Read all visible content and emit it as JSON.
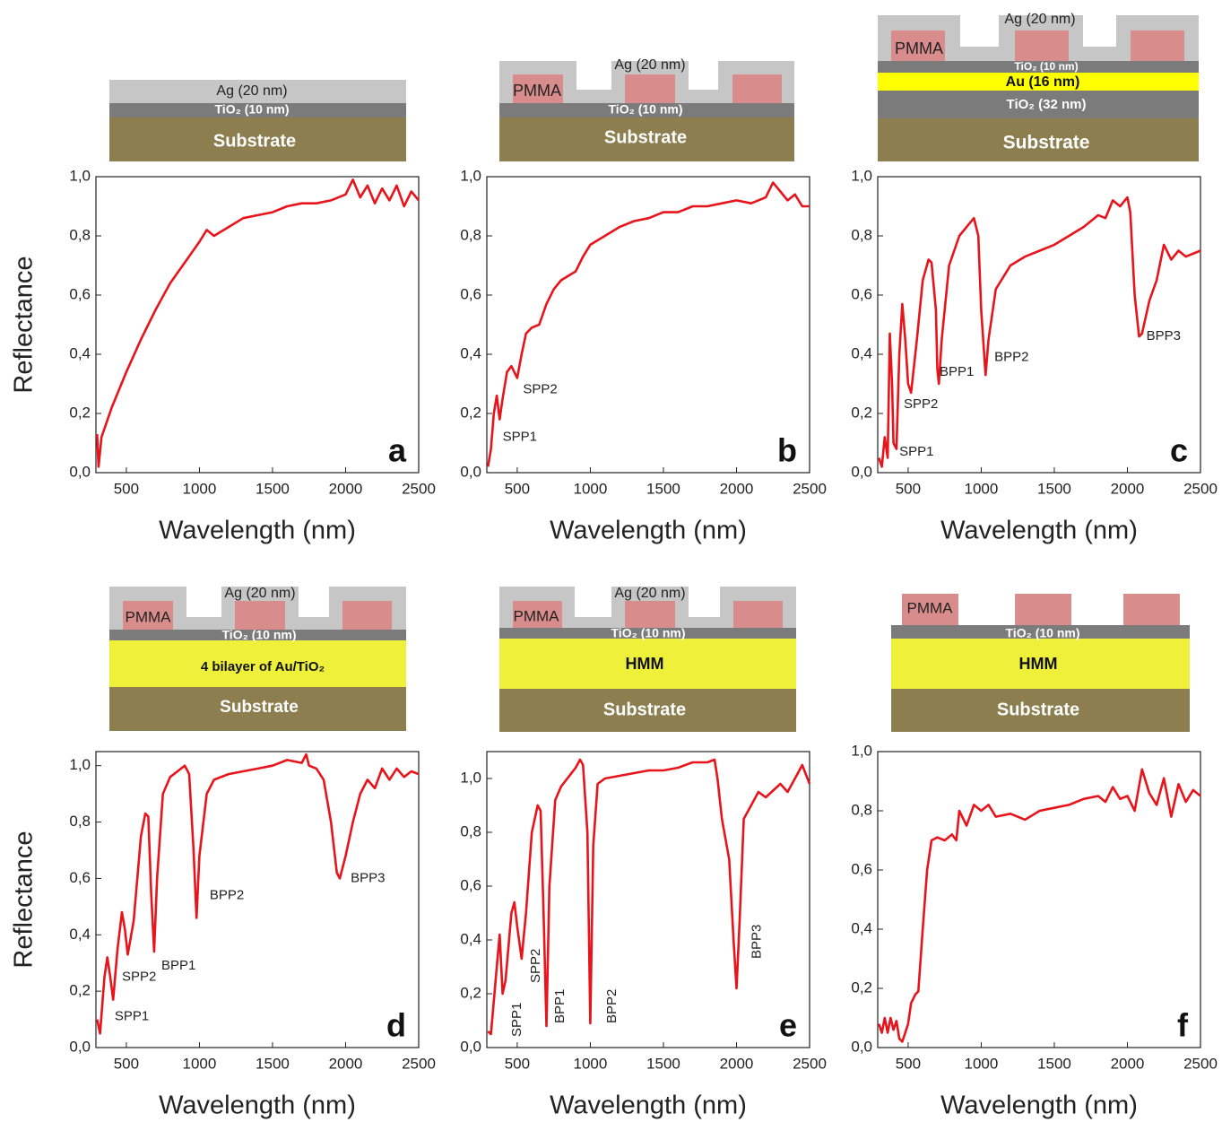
{
  "chart_data": [
    {
      "type": "line",
      "panel_label": "a",
      "xlabel": "Wavelength (nm)",
      "ylabel": "Reflectance",
      "color": "#e8141b",
      "schematic": [
        "Ag (20 nm)",
        "TiO₂ (10 nm)",
        "Substrate"
      ],
      "xlim": [
        292,
        2500
      ],
      "xticks": [
        500,
        1000,
        1500,
        2000,
        2500
      ],
      "ylim": [
        0,
        1
      ],
      "yticks": [
        {
          "value": 0,
          "label": "0,0"
        },
        {
          "value": 0.2,
          "label": "0,2"
        },
        {
          "value": 0.4,
          "label": "0,4"
        },
        {
          "value": 0.6,
          "label": "0,6"
        },
        {
          "value": 0.8,
          "label": "0,8"
        },
        {
          "value": 1,
          "label": "1,0"
        }
      ],
      "x": [
        300,
        310,
        330,
        400,
        500,
        600,
        700,
        800,
        900,
        1000,
        1050,
        1100,
        1200,
        1300,
        1400,
        1500,
        1600,
        1700,
        1800,
        1900,
        2000,
        2050,
        2100,
        2150,
        2200,
        2250,
        2300,
        2350,
        2400,
        2450,
        2500
      ],
      "values": [
        0.13,
        0.02,
        0.12,
        0.22,
        0.34,
        0.45,
        0.55,
        0.64,
        0.71,
        0.78,
        0.82,
        0.8,
        0.83,
        0.86,
        0.87,
        0.88,
        0.9,
        0.91,
        0.91,
        0.92,
        0.94,
        0.99,
        0.93,
        0.97,
        0.91,
        0.96,
        0.92,
        0.97,
        0.9,
        0.95,
        0.92
      ],
      "annotations": []
    },
    {
      "type": "line",
      "panel_label": "b",
      "xlabel": "Wavelength (nm)",
      "color": "#e8141b",
      "schematic": [
        "Ag (20 nm)",
        "PMMA",
        "TiO₂ (10 nm)",
        "Substrate"
      ],
      "xlim": [
        292,
        2500
      ],
      "xticks": [
        500,
        1000,
        1500,
        2000,
        2500
      ],
      "ylim": [
        0,
        1
      ],
      "yticks": [
        {
          "value": 0,
          "label": "0,0"
        },
        {
          "value": 0.2,
          "label": "0,2"
        },
        {
          "value": 0.4,
          "label": "0,4"
        },
        {
          "value": 0.6,
          "label": "0,6"
        },
        {
          "value": 0.8,
          "label": "0,8"
        },
        {
          "value": 1,
          "label": "1,0"
        }
      ],
      "x": [
        300,
        320,
        340,
        360,
        380,
        400,
        430,
        460,
        500,
        530,
        560,
        600,
        650,
        700,
        750,
        800,
        900,
        950,
        1000,
        1100,
        1200,
        1300,
        1400,
        1500,
        1600,
        1700,
        1800,
        1900,
        2000,
        2100,
        2200,
        2250,
        2300,
        2350,
        2400,
        2450,
        2500
      ],
      "values": [
        0.02,
        0.08,
        0.2,
        0.26,
        0.18,
        0.25,
        0.34,
        0.36,
        0.32,
        0.4,
        0.47,
        0.49,
        0.5,
        0.57,
        0.62,
        0.65,
        0.68,
        0.73,
        0.77,
        0.8,
        0.83,
        0.85,
        0.86,
        0.88,
        0.88,
        0.9,
        0.9,
        0.91,
        0.92,
        0.91,
        0.93,
        0.98,
        0.95,
        0.92,
        0.94,
        0.9,
        0.9
      ],
      "annotations": [
        {
          "text": "SPP1",
          "x": 400,
          "y": 0.12
        },
        {
          "text": "SPP2",
          "x": 540,
          "y": 0.28
        }
      ]
    },
    {
      "type": "line",
      "panel_label": "c",
      "xlabel": "Wavelength (nm)",
      "color": "#e8141b",
      "schematic": [
        "Ag (20 nm)",
        "PMMA",
        "TiO₂ (10 nm)",
        "Au (16 nm)",
        "TiO₂ (32 nm)",
        "Substrate"
      ],
      "xlim": [
        292,
        2500
      ],
      "xticks": [
        500,
        1000,
        1500,
        2000,
        2500
      ],
      "ylim": [
        0,
        1
      ],
      "yticks": [
        {
          "value": 0,
          "label": "0,0"
        },
        {
          "value": 0.2,
          "label": "0,2"
        },
        {
          "value": 0.4,
          "label": "0,4"
        },
        {
          "value": 0.6,
          "label": "0,6"
        },
        {
          "value": 0.8,
          "label": "0,8"
        },
        {
          "value": 1,
          "label": "1,0"
        }
      ],
      "x": [
        300,
        320,
        340,
        360,
        375,
        390,
        400,
        420,
        440,
        460,
        480,
        500,
        520,
        560,
        600,
        640,
        660,
        690,
        700,
        710,
        730,
        780,
        850,
        900,
        950,
        980,
        1000,
        1030,
        1050,
        1100,
        1200,
        1300,
        1400,
        1500,
        1600,
        1700,
        1800,
        1850,
        1900,
        1950,
        2000,
        2020,
        2050,
        2080,
        2100,
        2150,
        2200,
        2250,
        2300,
        2350,
        2400,
        2500
      ],
      "values": [
        0.05,
        0.02,
        0.12,
        0.05,
        0.47,
        0.3,
        0.1,
        0.08,
        0.4,
        0.57,
        0.45,
        0.3,
        0.27,
        0.45,
        0.65,
        0.72,
        0.71,
        0.55,
        0.35,
        0.3,
        0.45,
        0.7,
        0.8,
        0.83,
        0.86,
        0.8,
        0.55,
        0.33,
        0.45,
        0.62,
        0.7,
        0.73,
        0.75,
        0.77,
        0.8,
        0.83,
        0.87,
        0.86,
        0.92,
        0.9,
        0.93,
        0.88,
        0.6,
        0.46,
        0.47,
        0.58,
        0.65,
        0.77,
        0.72,
        0.75,
        0.73,
        0.75
      ],
      "annotations": [
        {
          "text": "SPP1",
          "x": 440,
          "y": 0.07
        },
        {
          "text": "SPP2",
          "x": 470,
          "y": 0.23
        },
        {
          "text": "BPP1",
          "x": 715,
          "y": 0.34
        },
        {
          "text": "BPP2",
          "x": 1090,
          "y": 0.39
        },
        {
          "text": "BPP3",
          "x": 2130,
          "y": 0.46
        }
      ]
    },
    {
      "type": "line",
      "panel_label": "d",
      "xlabel": "Wavelength (nm)",
      "ylabel": "Reflectance",
      "color": "#e8141b",
      "schematic": [
        "Ag (20 nm)",
        "PMMA",
        "TiO₂ (10 nm)",
        "4 bilayer of Au/TiO₂",
        "Substrate"
      ],
      "xlim": [
        292,
        2500
      ],
      "xticks": [
        500,
        1000,
        1500,
        2000,
        2500
      ],
      "ylim": [
        0,
        1.05
      ],
      "yticks": [
        {
          "value": 0,
          "label": "0,0"
        },
        {
          "value": 0.2,
          "label": "0,2"
        },
        {
          "value": 0.4,
          "label": "0,4"
        },
        {
          "value": 0.6,
          "label": "0,6"
        },
        {
          "value": 0.8,
          "label": "0,8"
        },
        {
          "value": 1,
          "label": "1,0"
        }
      ],
      "x": [
        300,
        320,
        350,
        370,
        390,
        410,
        440,
        470,
        490,
        510,
        550,
        600,
        630,
        650,
        670,
        690,
        710,
        750,
        800,
        850,
        900,
        930,
        960,
        980,
        1000,
        1050,
        1100,
        1200,
        1300,
        1400,
        1500,
        1600,
        1700,
        1730,
        1750,
        1800,
        1850,
        1900,
        1940,
        1960,
        2000,
        2050,
        2100,
        2150,
        2200,
        2250,
        2300,
        2350,
        2400,
        2450,
        2500
      ],
      "values": [
        0.1,
        0.05,
        0.25,
        0.32,
        0.25,
        0.17,
        0.35,
        0.48,
        0.42,
        0.33,
        0.45,
        0.75,
        0.83,
        0.82,
        0.55,
        0.34,
        0.6,
        0.9,
        0.96,
        0.98,
        1.0,
        0.97,
        0.7,
        0.46,
        0.68,
        0.9,
        0.95,
        0.97,
        0.98,
        0.99,
        1.0,
        1.02,
        1.01,
        1.04,
        1.0,
        0.99,
        0.95,
        0.8,
        0.62,
        0.6,
        0.68,
        0.8,
        0.9,
        0.95,
        0.92,
        0.99,
        0.95,
        0.99,
        0.96,
        0.98,
        0.97
      ],
      "annotations": [
        {
          "text": "SPP1",
          "x": 420,
          "y": 0.11
        },
        {
          "text": "SPP2",
          "x": 470,
          "y": 0.25
        },
        {
          "text": "BPP1",
          "x": 740,
          "y": 0.29
        },
        {
          "text": "BPP2",
          "x": 1070,
          "y": 0.54
        },
        {
          "text": "BPP3",
          "x": 2035,
          "y": 0.6
        }
      ]
    },
    {
      "type": "line",
      "panel_label": "e",
      "xlabel": "Wavelength (nm)",
      "color": "#e8141b",
      "schematic": [
        "Ag (20 nm)",
        "PMMA",
        "TiO₂ (10 nm)",
        "HMM",
        "Substrate"
      ],
      "xlim": [
        292,
        2500
      ],
      "xticks": [
        500,
        1000,
        1500,
        2000,
        2500
      ],
      "ylim": [
        0,
        1.1
      ],
      "yticks": [
        {
          "value": 0,
          "label": "0,0"
        },
        {
          "value": 0.2,
          "label": "0,2"
        },
        {
          "value": 0.4,
          "label": "0,4"
        },
        {
          "value": 0.6,
          "label": "0,6"
        },
        {
          "value": 0.8,
          "label": "0,8"
        },
        {
          "value": 1,
          "label": "1,0"
        }
      ],
      "x": [
        300,
        320,
        360,
        380,
        400,
        420,
        460,
        480,
        500,
        530,
        560,
        600,
        640,
        660,
        680,
        700,
        720,
        760,
        800,
        900,
        930,
        950,
        980,
        1000,
        1020,
        1050,
        1100,
        1200,
        1300,
        1400,
        1500,
        1600,
        1700,
        1800,
        1850,
        1870,
        1900,
        1950,
        1980,
        2000,
        2020,
        2050,
        2100,
        2150,
        2200,
        2300,
        2350,
        2400,
        2450,
        2500
      ],
      "values": [
        0.06,
        0.05,
        0.3,
        0.42,
        0.2,
        0.25,
        0.5,
        0.54,
        0.45,
        0.33,
        0.5,
        0.8,
        0.9,
        0.88,
        0.5,
        0.08,
        0.6,
        0.92,
        0.97,
        1.04,
        1.07,
        1.05,
        0.8,
        0.09,
        0.75,
        0.98,
        1.0,
        1.01,
        1.02,
        1.03,
        1.03,
        1.04,
        1.06,
        1.06,
        1.07,
        1.0,
        0.85,
        0.7,
        0.4,
        0.22,
        0.45,
        0.85,
        0.9,
        0.95,
        0.93,
        0.98,
        0.95,
        1.0,
        1.05,
        0.98
      ],
      "annotations": [
        {
          "text": "SPP1",
          "x": 500,
          "y": 0.04
        },
        {
          "text": "SPP2",
          "x": 630,
          "y": 0.24
        },
        {
          "text": "BPP1",
          "x": 795,
          "y": 0.09
        },
        {
          "text": "BPP2",
          "x": 1150,
          "y": 0.09
        },
        {
          "text": "BPP3",
          "x": 2140,
          "y": 0.33
        }
      ]
    },
    {
      "type": "line",
      "panel_label": "f",
      "xlabel": "Wavelength (nm)",
      "color": "#e8141b",
      "schematic": [
        "PMMA",
        "TiO₂ (10 nm)",
        "HMM",
        "Substrate"
      ],
      "xlim": [
        292,
        2500
      ],
      "xticks": [
        500,
        1000,
        1500,
        2000,
        2500
      ],
      "ylim": [
        0,
        1
      ],
      "yticks": [
        {
          "value": 0,
          "label": "0,0"
        },
        {
          "value": 0.2,
          "label": "0,2"
        },
        {
          "value": 0.4,
          "label": "0,4"
        },
        {
          "value": 0.6,
          "label": "0,6"
        },
        {
          "value": 0.8,
          "label": "0,8"
        },
        {
          "value": 1,
          "label": "1,0"
        }
      ],
      "x": [
        300,
        320,
        340,
        360,
        380,
        400,
        420,
        440,
        460,
        480,
        500,
        520,
        550,
        570,
        600,
        630,
        660,
        700,
        750,
        800,
        830,
        850,
        900,
        950,
        1000,
        1050,
        1100,
        1200,
        1300,
        1400,
        1500,
        1600,
        1700,
        1800,
        1850,
        1900,
        1950,
        2000,
        2050,
        2100,
        2150,
        2200,
        2250,
        2300,
        2350,
        2400,
        2450,
        2500
      ],
      "values": [
        0.08,
        0.05,
        0.1,
        0.05,
        0.1,
        0.06,
        0.09,
        0.03,
        0.02,
        0.05,
        0.08,
        0.15,
        0.18,
        0.19,
        0.4,
        0.6,
        0.7,
        0.71,
        0.7,
        0.72,
        0.7,
        0.8,
        0.75,
        0.82,
        0.8,
        0.82,
        0.78,
        0.79,
        0.77,
        0.8,
        0.81,
        0.82,
        0.84,
        0.85,
        0.83,
        0.88,
        0.84,
        0.85,
        0.8,
        0.94,
        0.86,
        0.82,
        0.91,
        0.78,
        0.89,
        0.83,
        0.87,
        0.85
      ],
      "annotations": []
    }
  ]
}
